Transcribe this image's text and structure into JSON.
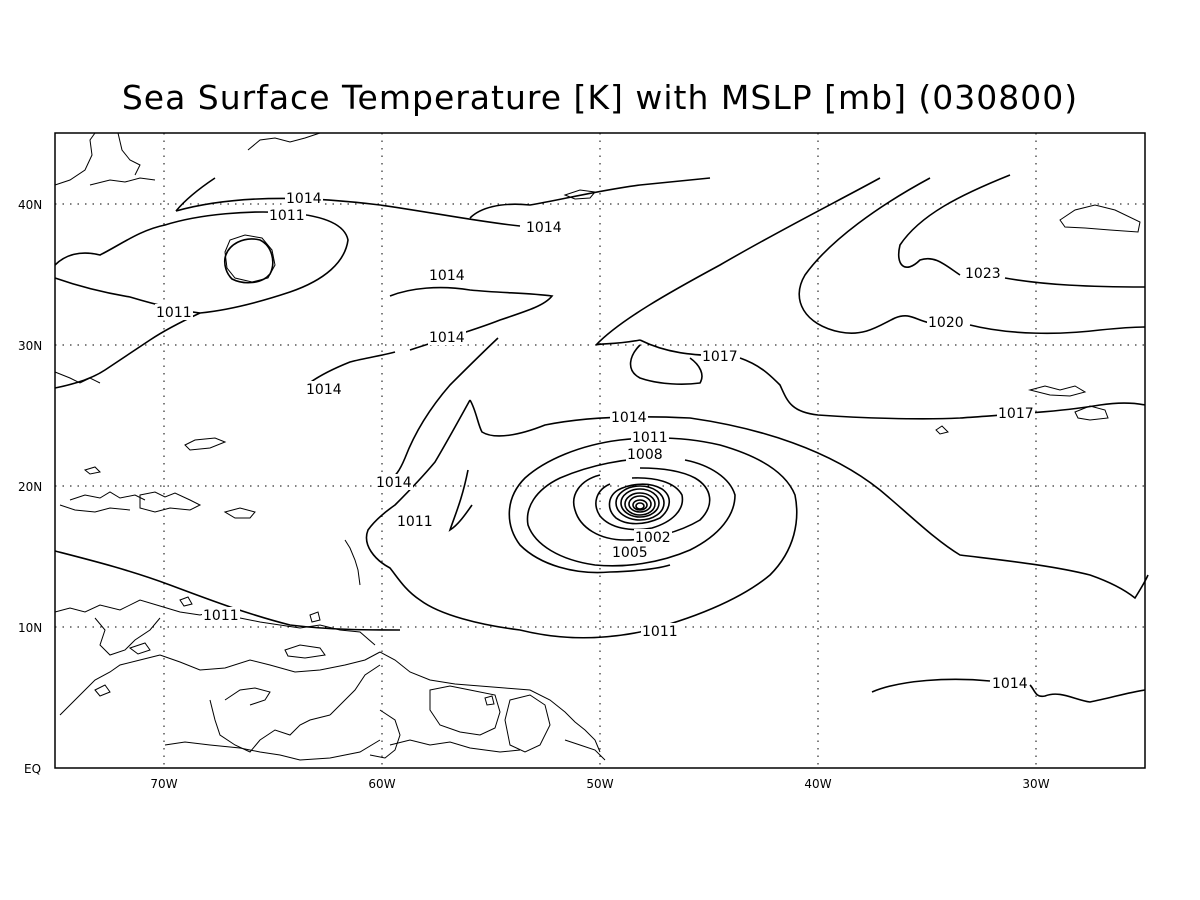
{
  "title": "Sea Surface Temperature [K] with MSLP [mb] (030800)",
  "map": {
    "lon_range": [
      -75,
      -25
    ],
    "lat_range": [
      0,
      45
    ],
    "lat_ticks": [
      "40N",
      "30N",
      "20N",
      "10N",
      "EQ"
    ],
    "lon_ticks": [
      "70W",
      "60W",
      "50W",
      "40W",
      "30W"
    ],
    "grid": "dotted",
    "contour_variable": "MSLP [mb]",
    "contour_levels": [
      1002,
      1005,
      1008,
      1011,
      1014,
      1017,
      1020,
      1023
    ],
    "contour_labels": [
      "1014",
      "1011",
      "1014",
      "1014",
      "1011",
      "1014",
      "1014",
      "1014",
      "1011",
      "1011",
      "1014",
      "1011",
      "1008",
      "1002",
      "1005",
      "1011",
      "1017",
      "1017",
      "1020",
      "1023",
      "1014"
    ],
    "low_pressure_center": {
      "lon": -48,
      "lat": 18.5,
      "note_value": "1002"
    }
  }
}
